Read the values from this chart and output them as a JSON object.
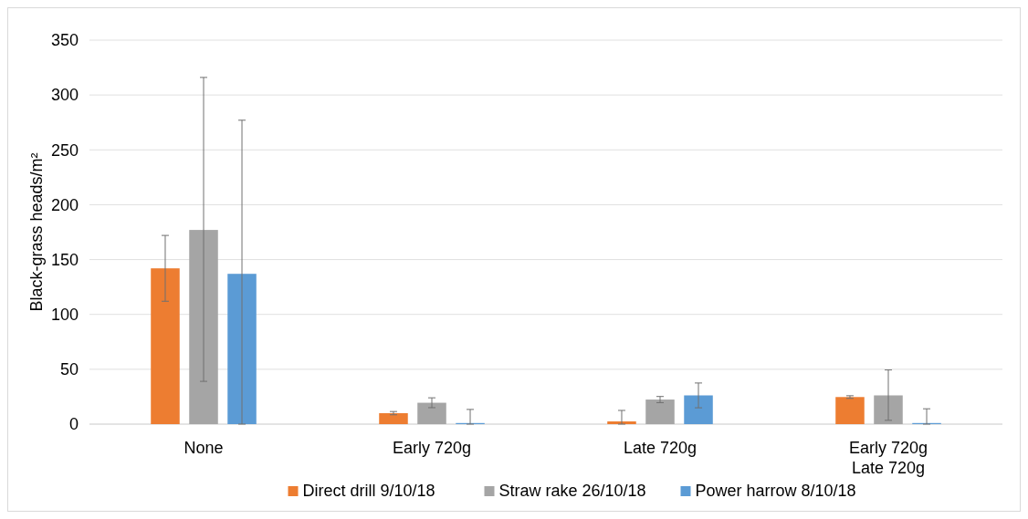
{
  "chart_data": {
    "type": "bar",
    "ylabel": "Black-grass heads/m²",
    "categories": [
      "None",
      "Early 720g",
      "Late 720g",
      "Early 720g\nLate 720g"
    ],
    "series": [
      {
        "name": "Direct drill 9/10/18",
        "color": "#ed7d31",
        "values": [
          142,
          10,
          2.5,
          24.7
        ],
        "errors": [
          30,
          1.5,
          [
            0,
            12.5
          ],
          1.2
        ]
      },
      {
        "name": "Straw rake 26/10/18",
        "color": "#a5a5a5",
        "values": [
          177,
          19.5,
          22.4,
          26.2
        ],
        "errors": [
          [
            39,
            316
          ],
          4.5,
          2.8,
          [
            3.5,
            49.4
          ]
        ]
      },
      {
        "name": "Power harrow 8/10/18",
        "color": "#5b9bd5",
        "values": [
          137,
          1,
          26.2,
          1
        ],
        "errors": [
          [
            0,
            277
          ],
          [
            0,
            13.4
          ],
          11.3,
          [
            0,
            14
          ]
        ]
      }
    ],
    "ylim": [
      0,
      350
    ],
    "yticks": [
      0,
      50,
      100,
      150,
      200,
      250,
      300,
      350
    ],
    "grid": "y",
    "legend": "bottom"
  }
}
